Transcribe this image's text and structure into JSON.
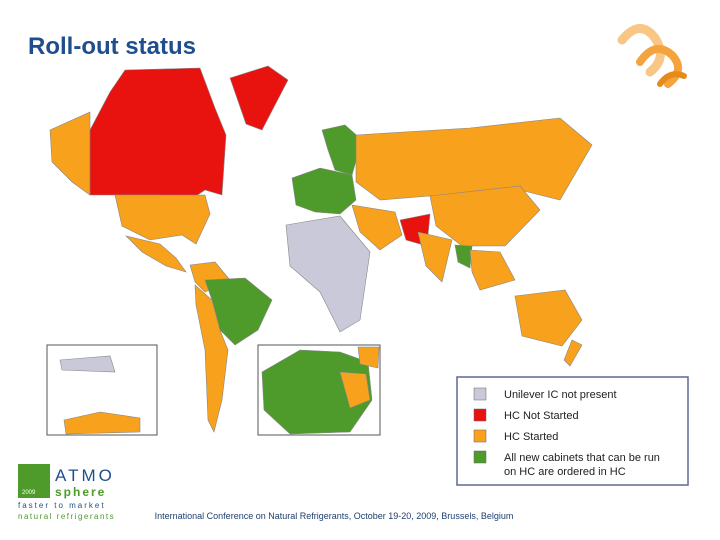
{
  "header": {
    "title": "Roll-out status"
  },
  "legend": {
    "items": [
      {
        "label": "Unilever IC not present",
        "color": "#c9c9d9"
      },
      {
        "label": "HC Not Started",
        "color": "#e8130f"
      },
      {
        "label": "HC Started",
        "color": "#f7a11c"
      },
      {
        "label": "All new cabinets that can be run on HC are ordered in HC",
        "color": "#4e9a2b"
      }
    ]
  },
  "logo": {
    "name_top": "ATMO",
    "name_bottom": "sphere",
    "year": "2009",
    "tagline_1": "faster to market",
    "tagline_2": "natural refrigerants"
  },
  "footer": {
    "text": "International Conference on Natural Refrigerants, October 19-20, 2009, Brussels, Belgium"
  }
}
